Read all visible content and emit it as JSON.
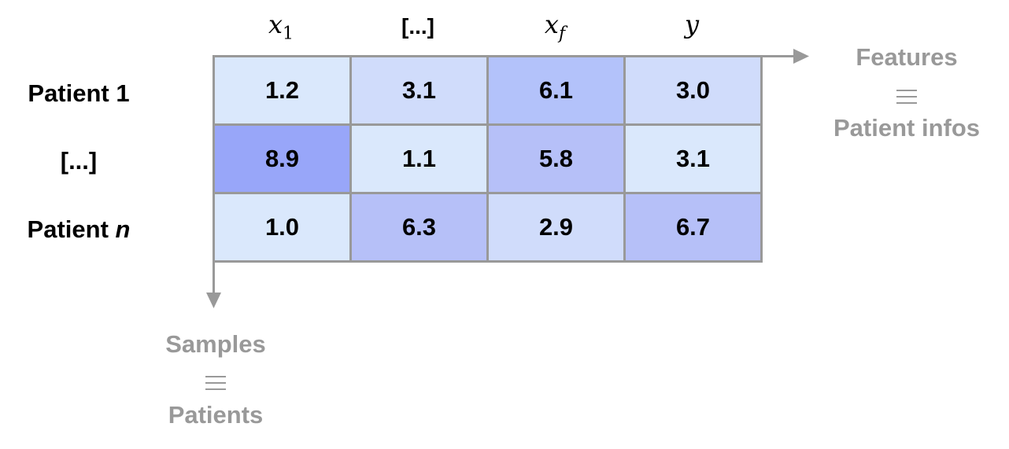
{
  "columns": [
    {
      "base": "x",
      "sub": "1"
    },
    {
      "label": "[...]"
    },
    {
      "base": "x",
      "sub": "f"
    },
    {
      "base": "y"
    }
  ],
  "rows": [
    {
      "label": "Patient 1",
      "values": [
        "1.2",
        "3.1",
        "6.1",
        "3.0"
      ],
      "colors": [
        "#dae8fc",
        "#d0dcfb",
        "#b3c2fa",
        "#d0dcfb"
      ]
    },
    {
      "label": "[...]",
      "values": [
        "8.9",
        "1.1",
        "5.8",
        "3.1"
      ],
      "colors": [
        "#98a6f9",
        "#dae8fc",
        "#b6c0f8",
        "#dae8fc"
      ]
    },
    {
      "label_prefix": "Patient ",
      "label_italic": "n",
      "values": [
        "1.0",
        "6.3",
        "2.9",
        "6.7"
      ],
      "colors": [
        "#dae8fc",
        "#b6c0f8",
        "#d0dcfb",
        "#b6c0f8"
      ]
    }
  ],
  "features_axis": {
    "top": "Features",
    "bottom": "Patient infos"
  },
  "samples_axis": {
    "top": "Samples",
    "bottom": "Patients"
  },
  "axis_color": "#999999"
}
